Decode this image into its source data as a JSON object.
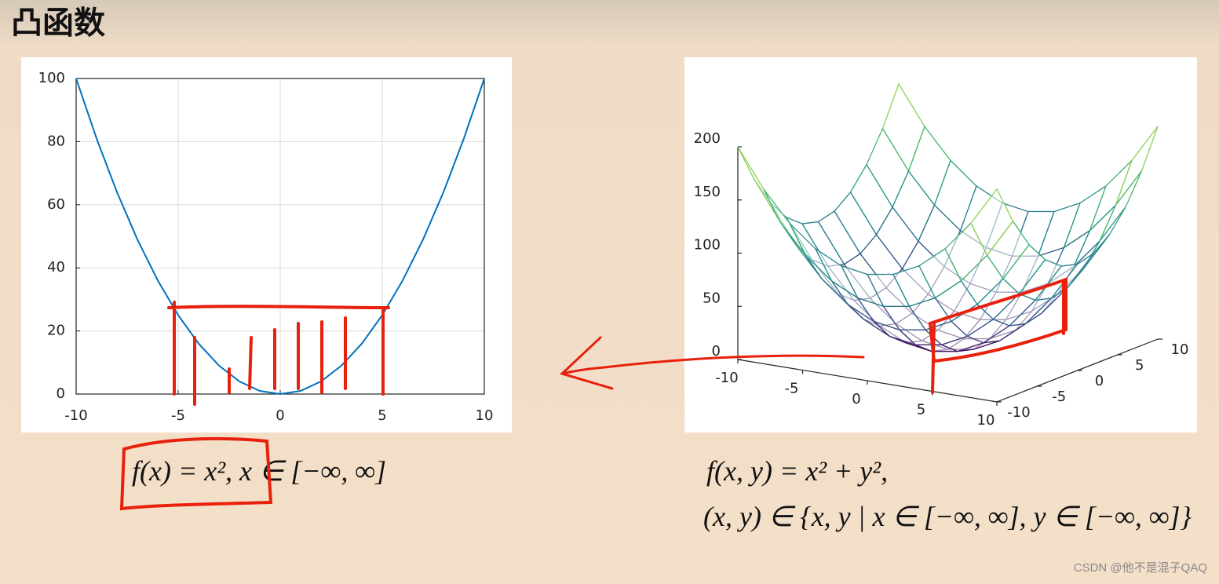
{
  "title": "凸函数",
  "chart_data": [
    {
      "type": "line",
      "x": [
        -10,
        -9,
        -8,
        -7,
        -6,
        -5,
        -4,
        -3,
        -2,
        -1,
        0,
        1,
        2,
        3,
        4,
        5,
        6,
        7,
        8,
        9,
        10
      ],
      "values": [
        100,
        81,
        64,
        49,
        36,
        25,
        16,
        9,
        4,
        1,
        0,
        1,
        4,
        9,
        16,
        25,
        36,
        49,
        64,
        81,
        100
      ],
      "color": "#0072bd",
      "xlim": [
        -10,
        10
      ],
      "xticks": [
        -10,
        -5,
        0,
        5,
        10
      ],
      "ylim": [
        0,
        100
      ],
      "yticks": [
        0,
        20,
        40,
        60,
        80,
        100
      ],
      "grid": true
    },
    {
      "type": "surface",
      "x": [
        -10,
        -8,
        -6,
        -4,
        -2,
        0,
        2,
        4,
        6,
        8,
        10
      ],
      "y": [
        -10,
        -8,
        -6,
        -4,
        -2,
        0,
        2,
        4,
        6,
        8,
        10
      ],
      "z": [
        [
          200,
          164,
          136,
          116,
          104,
          100,
          104,
          116,
          136,
          164,
          200
        ],
        [
          164,
          128,
          100,
          80,
          68,
          64,
          68,
          80,
          100,
          128,
          164
        ],
        [
          136,
          100,
          72,
          52,
          40,
          36,
          40,
          52,
          72,
          100,
          136
        ],
        [
          116,
          80,
          52,
          32,
          20,
          16,
          20,
          32,
          52,
          80,
          116
        ],
        [
          104,
          68,
          40,
          20,
          8,
          4,
          8,
          20,
          40,
          68,
          104
        ],
        [
          100,
          64,
          36,
          16,
          4,
          0,
          4,
          16,
          36,
          64,
          100
        ],
        [
          104,
          68,
          40,
          20,
          8,
          4,
          8,
          20,
          40,
          68,
          104
        ],
        [
          116,
          80,
          52,
          32,
          20,
          16,
          20,
          32,
          52,
          80,
          116
        ],
        [
          136,
          100,
          72,
          52,
          40,
          36,
          40,
          52,
          72,
          100,
          136
        ],
        [
          164,
          128,
          100,
          80,
          68,
          64,
          68,
          80,
          100,
          128,
          164
        ],
        [
          200,
          164,
          136,
          116,
          104,
          100,
          104,
          116,
          136,
          164,
          200
        ]
      ],
      "colormap": [
        "#440154",
        "#3b528b",
        "#21918c",
        "#5ec962",
        "#fde725"
      ],
      "xlim": [
        -10,
        10
      ],
      "xticks": [
        -10,
        -5,
        0,
        5,
        10
      ],
      "ylim": [
        -10,
        10
      ],
      "yticks": [
        -10,
        -5,
        0,
        5,
        10
      ],
      "zlim": [
        0,
        200
      ],
      "zticks": [
        0,
        50,
        100,
        150,
        200
      ]
    }
  ],
  "formulas": [
    "f(x) = x², x ∈ [−∞, ∞]",
    "f(x, y) = x² + y²,",
    "(x, y) ∈ {x, y | x ∈ [−∞, ∞], y ∈ [−∞, ∞]}"
  ],
  "watermark": "CSDN @他不是混子QAQ"
}
